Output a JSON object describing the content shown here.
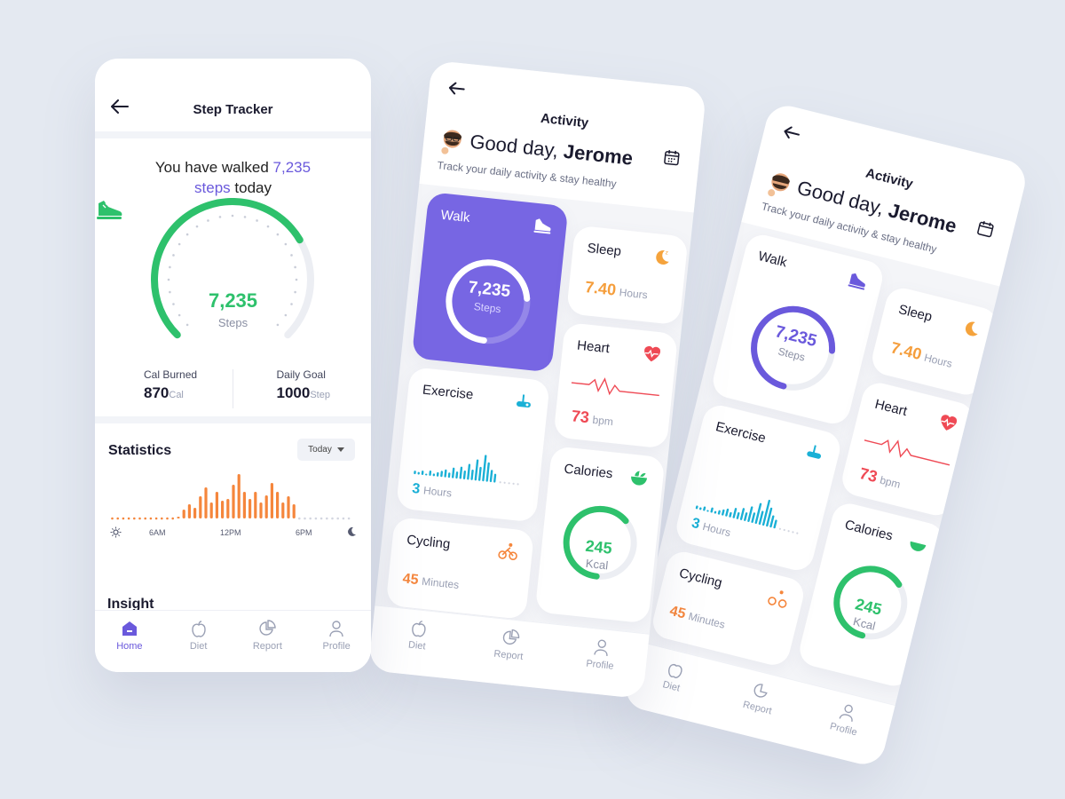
{
  "colors": {
    "accent": "#6a59dc",
    "green": "#2ec16c",
    "orange": "#f5863c",
    "red": "#ef4a55",
    "cyan": "#1ab0d6",
    "background": "#e4e9f1"
  },
  "step_tracker": {
    "title": "Step Tracker",
    "walked_prefix": "You have walked",
    "walked_steps": "7,235",
    "walked_steps_word": "steps",
    "walked_suffix": "today",
    "gauge_value": "7,235",
    "gauge_label": "Steps",
    "gauge_progress": 0.72,
    "cal_burned_label": "Cal Burned",
    "cal_burned_value": "870",
    "cal_burned_unit": "Cal",
    "daily_goal_label": "Daily Goal",
    "daily_goal_value": "1000",
    "daily_goal_unit": "Step",
    "statistics_title": "Statistics",
    "period_select": "Today",
    "axis": [
      "6AM",
      "12PM",
      "6PM"
    ],
    "insight_title": "Insight"
  },
  "activity": {
    "title": "Activity",
    "greeting": "Good day,",
    "name": "Jerome",
    "subtitle": "Track your daily activity & stay healthy",
    "walk": {
      "label": "Walk",
      "value": "7,235",
      "unit": "Steps",
      "progress": 0.72
    },
    "sleep": {
      "label": "Sleep",
      "value": "7.40",
      "unit": "Hours"
    },
    "heart": {
      "label": "Heart",
      "value": "73",
      "unit": "bpm"
    },
    "exercise": {
      "label": "Exercise",
      "value": "3",
      "unit": "Hours"
    },
    "calories": {
      "label": "Calories",
      "value": "245",
      "unit": "Kcal",
      "progress": 0.62
    },
    "cycling": {
      "label": "Cycling",
      "value": "45",
      "unit": "Minutes"
    }
  },
  "nav": [
    "Home",
    "Diet",
    "Report",
    "Profile"
  ],
  "icons": [
    "back-arrow-icon",
    "shoe-icon",
    "sun-icon",
    "moon-icon",
    "calendar-icon",
    "heart-pulse-icon",
    "bike-icon",
    "cyclist-icon",
    "salad-icon",
    "home-icon",
    "apple-icon",
    "pie-chart-icon",
    "user-icon"
  ]
}
